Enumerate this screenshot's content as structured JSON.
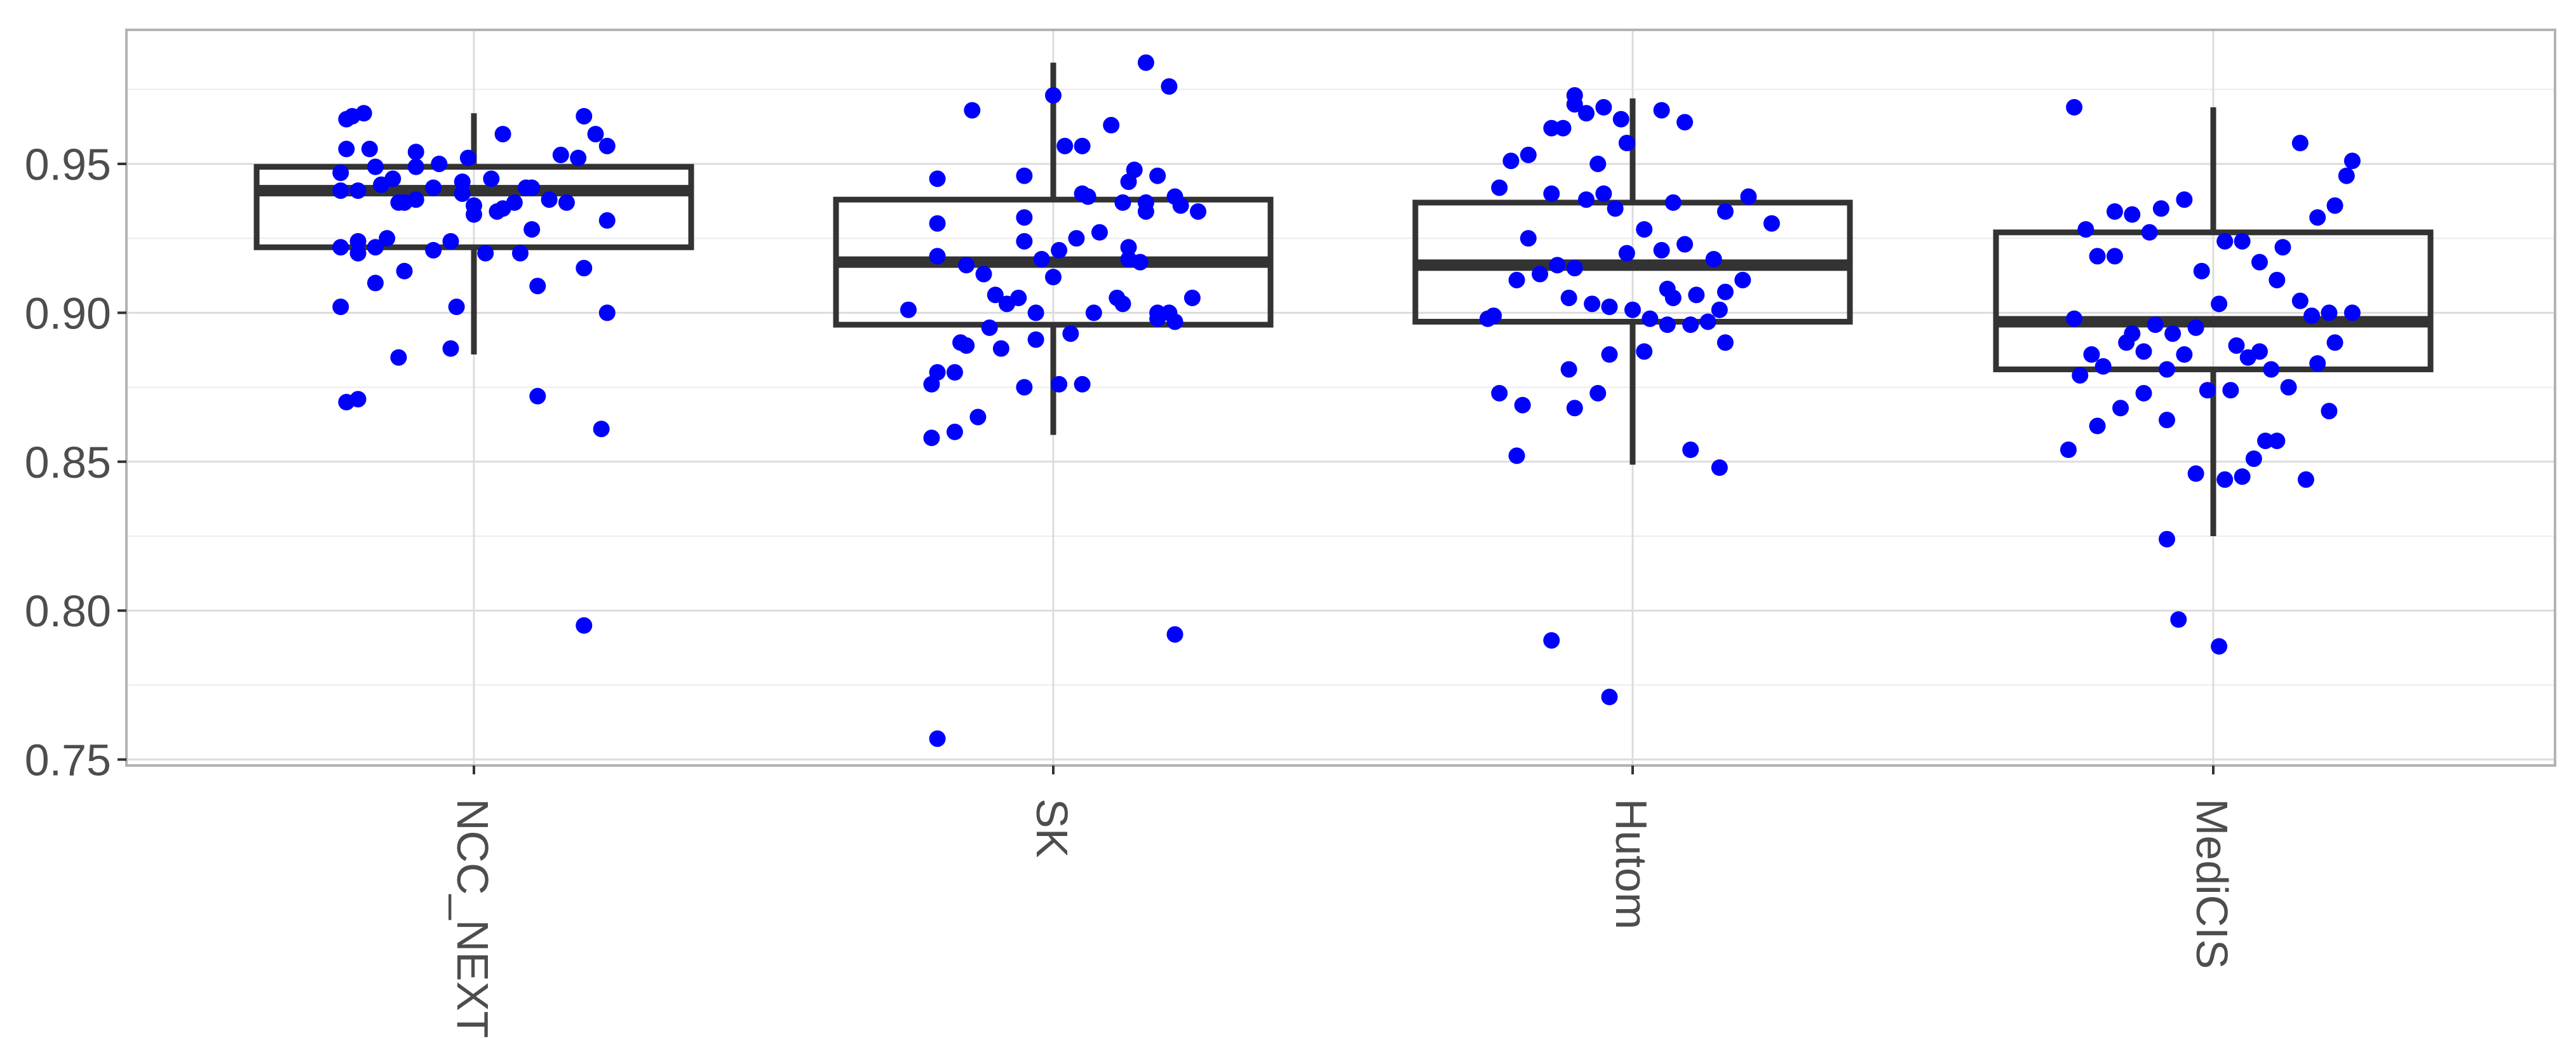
{
  "chart_data": {
    "type": "boxplot",
    "title": "",
    "xlabel": "",
    "ylabel": "",
    "ylim": [
      0.748,
      0.995
    ],
    "yticks": [
      0.75,
      0.8,
      0.85,
      0.9,
      0.95
    ],
    "ytick_labels": [
      "0.75",
      "0.80",
      "0.85",
      "0.90",
      "0.95"
    ],
    "grid": true,
    "legend": "none",
    "point_color": "#0000ff",
    "box_color": "#333333",
    "categories": [
      "NCC_NEXT",
      "SK",
      "Hutom",
      "MediCIS"
    ],
    "boxes": [
      {
        "category": "NCC_NEXT",
        "whisker_low": 0.886,
        "q1": 0.922,
        "median": 0.941,
        "q3": 0.949,
        "whisker_high": 0.967
      },
      {
        "category": "SK",
        "whisker_low": 0.859,
        "q1": 0.896,
        "median": 0.917,
        "q3": 0.938,
        "whisker_high": 0.984
      },
      {
        "category": "Hutom",
        "whisker_low": 0.849,
        "q1": 0.897,
        "median": 0.916,
        "q3": 0.937,
        "whisker_high": 0.972
      },
      {
        "category": "MediCIS",
        "whisker_low": 0.825,
        "q1": 0.881,
        "median": 0.897,
        "q3": 0.927,
        "whisker_high": 0.969
      }
    ],
    "points": [
      {
        "category": "NCC_NEXT",
        "jitter": [
          -0.22,
          -0.21,
          -0.19,
          -0.22,
          -0.18,
          -0.23,
          -0.17,
          -0.14,
          -0.1,
          -0.1,
          -0.06,
          -0.01,
          -0.02,
          0.03,
          0.05,
          0.05,
          0.09,
          0.15,
          0.18,
          0.19,
          0.21,
          0.23,
          -0.23,
          -0.2,
          -0.16,
          -0.13,
          -0.12,
          -0.1,
          -0.07,
          -0.02,
          0.0,
          0.04,
          0.07,
          0.1,
          0.13,
          -0.2,
          -0.23,
          -0.17,
          -0.15,
          -0.07,
          -0.04,
          0.0,
          0.02,
          0.1,
          0.16,
          0.23,
          -0.2,
          -0.12,
          -0.03,
          0.11,
          0.19,
          0.23,
          -0.23,
          -0.22,
          -0.2,
          -0.13,
          -0.04,
          0.11,
          0.22,
          0.19,
          -0.17,
          0.08
        ],
        "values": [
          0.965,
          0.966,
          0.967,
          0.955,
          0.955,
          0.947,
          0.949,
          0.945,
          0.949,
          0.954,
          0.95,
          0.952,
          0.94,
          0.945,
          0.935,
          0.96,
          0.942,
          0.953,
          0.952,
          0.966,
          0.96,
          0.956,
          0.941,
          0.941,
          0.943,
          0.937,
          0.937,
          0.938,
          0.942,
          0.944,
          0.936,
          0.934,
          0.937,
          0.942,
          0.938,
          0.924,
          0.922,
          0.922,
          0.925,
          0.921,
          0.924,
          0.933,
          0.92,
          0.928,
          0.937,
          0.931,
          0.92,
          0.914,
          0.902,
          0.909,
          0.915,
          0.9,
          0.902,
          0.87,
          0.871,
          0.885,
          0.888,
          0.872,
          0.861,
          0.795,
          0.91,
          0.92
        ]
      },
      {
        "category": "SK",
        "jitter": [
          0.16,
          0.2,
          -0.14,
          -0.2,
          -0.05,
          0.0,
          0.02,
          0.05,
          0.1,
          0.14,
          0.18,
          0.25,
          -0.05,
          0.06,
          0.12,
          0.16,
          0.24,
          0.21,
          -0.2,
          -0.15,
          -0.12,
          -0.1,
          -0.06,
          -0.02,
          0.01,
          0.04,
          0.08,
          0.13,
          0.16,
          -0.25,
          -0.2,
          -0.16,
          -0.11,
          -0.08,
          -0.03,
          0.03,
          0.07,
          0.12,
          0.18,
          0.21,
          -0.21,
          -0.15,
          -0.09,
          -0.03,
          0.01,
          -0.13,
          -0.05,
          0.05,
          0.11,
          -0.21,
          -0.17,
          -0.2,
          0.21,
          -0.17,
          0.0,
          0.13,
          -0.05,
          0.15,
          0.22,
          0.2,
          -0.2,
          0.05,
          0.13,
          0.18
        ],
        "values": [
          0.984,
          0.976,
          0.968,
          0.945,
          0.946,
          0.973,
          0.956,
          0.956,
          0.963,
          0.948,
          0.946,
          0.934,
          0.932,
          0.939,
          0.937,
          0.937,
          0.905,
          0.939,
          0.919,
          0.916,
          0.913,
          0.906,
          0.905,
          0.918,
          0.921,
          0.925,
          0.927,
          0.922,
          0.934,
          0.901,
          0.88,
          0.89,
          0.895,
          0.903,
          0.9,
          0.893,
          0.9,
          0.903,
          0.9,
          0.897,
          0.876,
          0.889,
          0.888,
          0.891,
          0.876,
          0.865,
          0.875,
          0.876,
          0.905,
          0.858,
          0.86,
          0.757,
          0.792,
          0.88,
          0.912,
          0.944,
          0.924,
          0.917,
          0.936,
          0.9,
          0.93,
          0.94,
          0.918,
          0.898
        ]
      },
      {
        "category": "Hutom",
        "jitter": [
          -0.08,
          -0.1,
          -0.05,
          -0.02,
          0.05,
          0.09,
          -0.21,
          -0.23,
          -0.18,
          -0.14,
          -0.12,
          -0.1,
          -0.06,
          -0.01,
          0.05,
          0.07,
          0.16,
          0.2,
          0.24,
          -0.18,
          -0.13,
          -0.08,
          -0.03,
          0.02,
          0.09,
          0.14,
          0.19,
          -0.24,
          -0.2,
          -0.16,
          -0.11,
          -0.07,
          -0.04,
          0.0,
          0.03,
          0.1,
          0.13,
          0.16,
          -0.23,
          -0.19,
          -0.11,
          -0.04,
          0.02,
          0.06,
          0.11,
          0.1,
          0.15,
          -0.2,
          -0.14,
          -0.1,
          -0.04,
          -0.06,
          0.06,
          0.16,
          -0.25,
          -0.1,
          -0.01,
          -0.14,
          -0.05,
          0.07,
          0.15
        ],
        "values": [
          0.967,
          0.973,
          0.969,
          0.965,
          0.968,
          0.964,
          0.951,
          0.942,
          0.953,
          0.962,
          0.962,
          0.97,
          0.95,
          0.957,
          0.921,
          0.937,
          0.934,
          0.939,
          0.93,
          0.925,
          0.916,
          0.938,
          0.935,
          0.928,
          0.923,
          0.918,
          0.911,
          0.899,
          0.911,
          0.913,
          0.905,
          0.903,
          0.902,
          0.901,
          0.898,
          0.896,
          0.897,
          0.907,
          0.873,
          0.869,
          0.881,
          0.886,
          0.887,
          0.908,
          0.906,
          0.854,
          0.848,
          0.852,
          0.79,
          0.868,
          0.771,
          0.873,
          0.896,
          0.89,
          0.898,
          0.915,
          0.92,
          0.94,
          0.94,
          0.905,
          0.901
        ]
      },
      {
        "category": "MediCIS",
        "jitter": [
          -0.24,
          -0.22,
          -0.2,
          -0.17,
          -0.14,
          -0.11,
          -0.09,
          -0.05,
          -0.02,
          0.02,
          0.05,
          0.08,
          0.12,
          0.15,
          0.18,
          0.21,
          0.24,
          -0.24,
          -0.21,
          -0.17,
          -0.14,
          -0.1,
          -0.07,
          -0.03,
          0.01,
          0.04,
          0.08,
          0.11,
          0.15,
          0.18,
          0.21,
          0.24,
          -0.23,
          -0.19,
          -0.15,
          -0.12,
          -0.08,
          -0.05,
          -0.01,
          0.03,
          0.06,
          0.1,
          0.13,
          0.17,
          0.2,
          0.23,
          -0.25,
          -0.2,
          -0.16,
          -0.12,
          -0.08,
          -0.03,
          0.02,
          0.07,
          0.11,
          0.16,
          0.2,
          -0.08,
          -0.06,
          0.01,
          0.05,
          0.09
        ],
        "values": [
          0.969,
          0.928,
          0.919,
          0.934,
          0.933,
          0.927,
          0.935,
          0.938,
          0.914,
          0.924,
          0.924,
          0.917,
          0.922,
          0.957,
          0.932,
          0.936,
          0.951,
          0.898,
          0.886,
          0.919,
          0.893,
          0.896,
          0.893,
          0.895,
          0.903,
          0.889,
          0.887,
          0.911,
          0.904,
          0.883,
          0.89,
          0.9,
          0.879,
          0.882,
          0.89,
          0.887,
          0.881,
          0.886,
          0.874,
          0.874,
          0.885,
          0.881,
          0.875,
          0.899,
          0.9,
          0.946,
          0.854,
          0.862,
          0.868,
          0.873,
          0.864,
          0.846,
          0.844,
          0.851,
          0.857,
          0.844,
          0.867,
          0.824,
          0.797,
          0.788,
          0.845,
          0.857
        ]
      }
    ]
  }
}
